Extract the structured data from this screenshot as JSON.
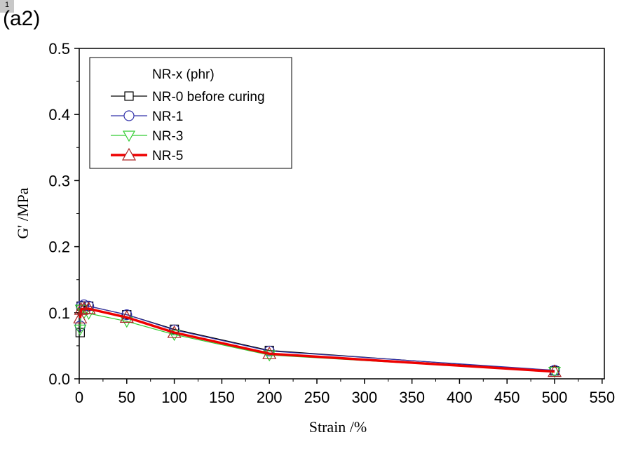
{
  "page_badge": "1",
  "panel_label": "(a2)",
  "chart_data": {
    "type": "line",
    "xlabel": "Strain /%",
    "ylabel": "G' /MPa",
    "xlim": [
      0,
      550
    ],
    "ylim": [
      0,
      0.5
    ],
    "xticks": [
      0,
      50,
      100,
      150,
      200,
      250,
      300,
      350,
      400,
      450,
      500,
      550
    ],
    "yticks": [
      "0.0",
      "0.1",
      "0.2",
      "0.3",
      "0.4",
      "0.5"
    ],
    "grid": false,
    "legend_title": "NR-x (phr)",
    "legend_position": "top-left",
    "x": [
      1,
      2,
      5,
      10,
      50,
      100,
      200,
      500
    ],
    "series": [
      {
        "name": "NR-0 before curing",
        "color": "#000000",
        "marker": "square",
        "values": [
          0.07,
          0.11,
          0.11,
          0.11,
          0.097,
          0.075,
          0.043,
          0.012
        ]
      },
      {
        "name": "NR-1",
        "color": "#3333aa",
        "marker": "circle",
        "values": [
          0.08,
          0.11,
          0.112,
          0.11,
          0.097,
          0.074,
          0.042,
          0.013
        ]
      },
      {
        "name": "NR-3",
        "color": "#33cc33",
        "marker": "triangle-down",
        "values": [
          0.075,
          0.105,
          0.1,
          0.099,
          0.087,
          0.067,
          0.036,
          0.011
        ]
      },
      {
        "name": "NR-5",
        "color": "#ee0000",
        "marker": "triangle-up",
        "values": [
          0.092,
          0.105,
          0.106,
          0.106,
          0.093,
          0.07,
          0.038,
          0.011
        ]
      }
    ]
  }
}
